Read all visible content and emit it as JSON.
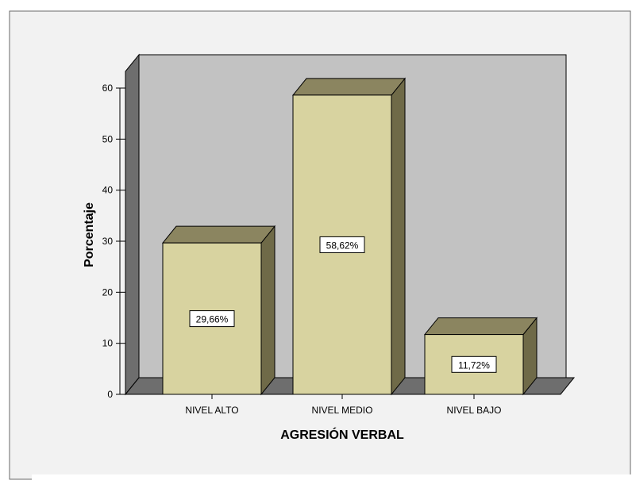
{
  "chart_data": {
    "type": "bar",
    "title": "",
    "xlabel": "AGRESIÓN VERBAL",
    "ylabel": "Porcentaje",
    "categories": [
      "NIVEL ALTO",
      "NIVEL MEDIO",
      "NIVEL BAJO"
    ],
    "values": [
      29.66,
      58.62,
      11.72
    ],
    "data_labels": [
      "29,66%",
      "58,62%",
      "11,72%"
    ],
    "yticks": [
      0,
      10,
      20,
      30,
      40,
      50,
      60
    ],
    "ylim": [
      0,
      60
    ],
    "grid": false,
    "legend": "none",
    "style": "3d-bar",
    "colors": {
      "bar_front": "#d8d3a0",
      "bar_top": "#8b8560",
      "bar_side": "#6f6a48",
      "plot_back": "#c2c2c2",
      "plot_floor": "#6e6e6e",
      "plot_wall": "#6e6e6e",
      "outer_bg": "#f2f2f2"
    }
  }
}
